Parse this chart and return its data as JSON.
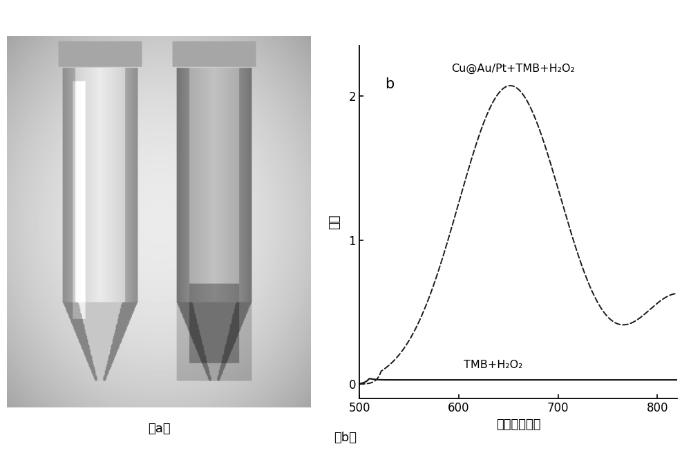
{
  "xlim": [
    500,
    820
  ],
  "ylim": [
    -0.1,
    2.35
  ],
  "xlabel": "波长（纳米）",
  "ylabel": "吸收",
  "xticks": [
    500,
    600,
    700,
    800
  ],
  "yticks": [
    0,
    1,
    2
  ],
  "label_b": "b",
  "label_curve1": "Cu@Au/Pt+TMB+H₂O₂",
  "label_curve2": "TMB+H₂O₂",
  "label_a_caption": "（a）",
  "label_b_caption": "（b）",
  "background_color": "#ffffff",
  "line_color": "#1a1a1a",
  "curve1_peak_x": 652,
  "curve1_peak_y": 2.07,
  "curve2_flat_y": 0.03
}
